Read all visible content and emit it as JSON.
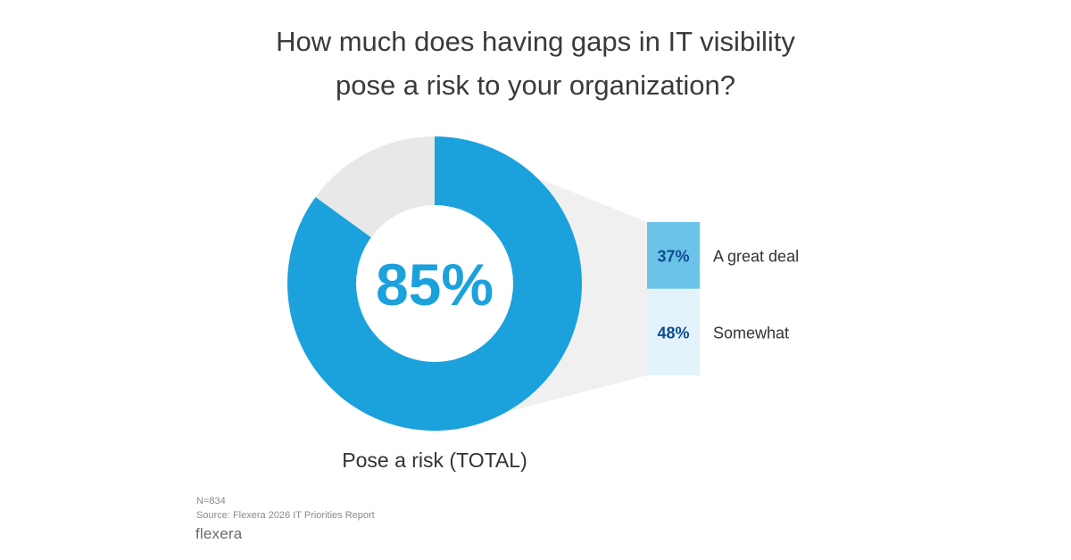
{
  "title_lines": [
    "How much does having gaps in IT visibility",
    "pose a risk to your organization?"
  ],
  "chart_data": {
    "type": "donut",
    "title": "How much does having gaps in IT visibility pose a risk to your organization?",
    "total": {
      "label": "Pose a risk (TOTAL)",
      "value": 85,
      "display": "85%"
    },
    "remainder_value": 15,
    "breakdown": [
      {
        "label": "A great deal",
        "value": 37,
        "display": "37%",
        "color": "#6cc3ea"
      },
      {
        "label": "Somewhat",
        "value": 48,
        "display": "48%",
        "color": "#e3f3fc"
      }
    ],
    "colors": {
      "main": "#1ba1dc",
      "remainder": "#e8e8e8",
      "connector": "#f0f0f0",
      "center_text": "#1ba1dc",
      "value_text": "#0d4d8f"
    }
  },
  "footnotes": {
    "n": "N=834",
    "source": "Source: Flexera 2026 IT Priorities Report"
  },
  "logo": "flexera"
}
